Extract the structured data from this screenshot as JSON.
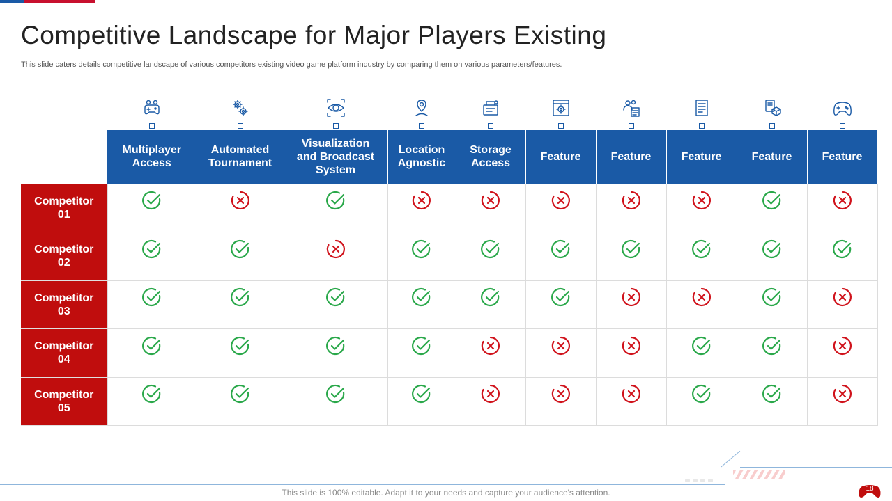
{
  "title": "Competitive Landscape for Major Players Existing",
  "subtitle": "This slide caters details competitive landscape of various competitors existing video game platform industry by comparing them on various parameters/features.",
  "columns": [
    {
      "label": "Multiplayer Access",
      "icon": "gamepad-players-icon"
    },
    {
      "label": "Automated Tournament",
      "icon": "gears-icon"
    },
    {
      "label": "Visualization and Broadcast System",
      "icon": "eye-scan-icon"
    },
    {
      "label": "Location Agnostic",
      "icon": "location-person-icon"
    },
    {
      "label": "Storage Access",
      "icon": "storage-device-icon"
    },
    {
      "label": "Feature",
      "icon": "settings-window-icon"
    },
    {
      "label": "Feature",
      "icon": "team-document-icon"
    },
    {
      "label": "Feature",
      "icon": "document-list-icon"
    },
    {
      "label": "Feature",
      "icon": "device-cube-icon"
    },
    {
      "label": "Feature",
      "icon": "controller-icon"
    }
  ],
  "rows": [
    {
      "label": "Competitor 01",
      "values": [
        true,
        false,
        true,
        false,
        false,
        false,
        false,
        false,
        true,
        false
      ]
    },
    {
      "label": "Competitor 02",
      "values": [
        true,
        true,
        false,
        true,
        true,
        true,
        true,
        true,
        true,
        true
      ]
    },
    {
      "label": "Competitor 03",
      "values": [
        true,
        true,
        true,
        true,
        true,
        true,
        false,
        false,
        true,
        false
      ]
    },
    {
      "label": "Competitor 04",
      "values": [
        true,
        true,
        true,
        true,
        false,
        false,
        false,
        true,
        true,
        false
      ]
    },
    {
      "label": "Competitor 05",
      "values": [
        true,
        true,
        true,
        true,
        false,
        false,
        false,
        true,
        true,
        false
      ]
    }
  ],
  "status_icons": {
    "yes": "check-circle-icon",
    "no": "x-circle-icon"
  },
  "colors": {
    "header_blue": "#1a5aa6",
    "row_red": "#c00d0d",
    "check_green": "#2aa84a",
    "cross_red": "#d0121b"
  },
  "footer": "This slide is 100% editable. Adapt it to your needs and capture your audience's attention.",
  "page_number": "18"
}
